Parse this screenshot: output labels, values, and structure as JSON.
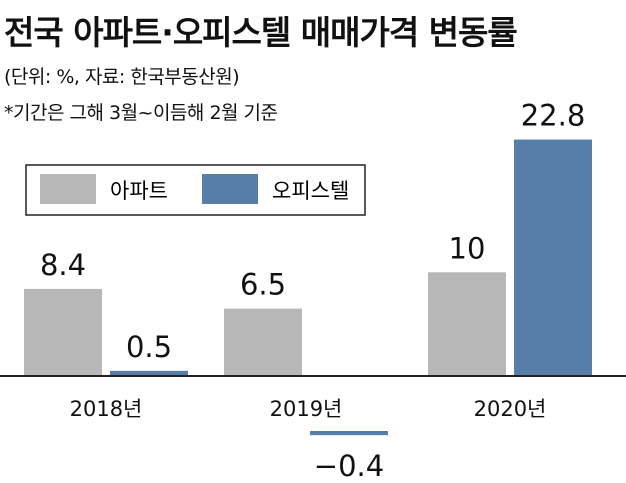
{
  "header": {
    "title": "전국 아파트·오피스텔 매매가격 변동률",
    "subtitle": "(단위: %, 자료: 한국부동산원)",
    "note": "*기간은 그해 3월~이듬해 2월 기준"
  },
  "colors": {
    "apartment": "#b7b7b7",
    "officetel": "#567ea9",
    "axis": "#222222"
  },
  "chart_data": {
    "type": "bar",
    "categories": [
      "2018년",
      "2019년",
      "2020년"
    ],
    "series": [
      {
        "name": "아파트",
        "values": [
          8.4,
          6.5,
          10
        ],
        "labels": [
          "8.4",
          "6.5",
          "10"
        ]
      },
      {
        "name": "오피스텔",
        "values": [
          0.5,
          -0.4,
          22.8
        ],
        "labels": [
          "0.5",
          "−0.4",
          "22.8"
        ]
      }
    ],
    "title": "전국 아파트·오피스텔 매매가격 변동률",
    "xlabel": "",
    "ylabel": "",
    "legend": "top-left",
    "grid": false
  }
}
